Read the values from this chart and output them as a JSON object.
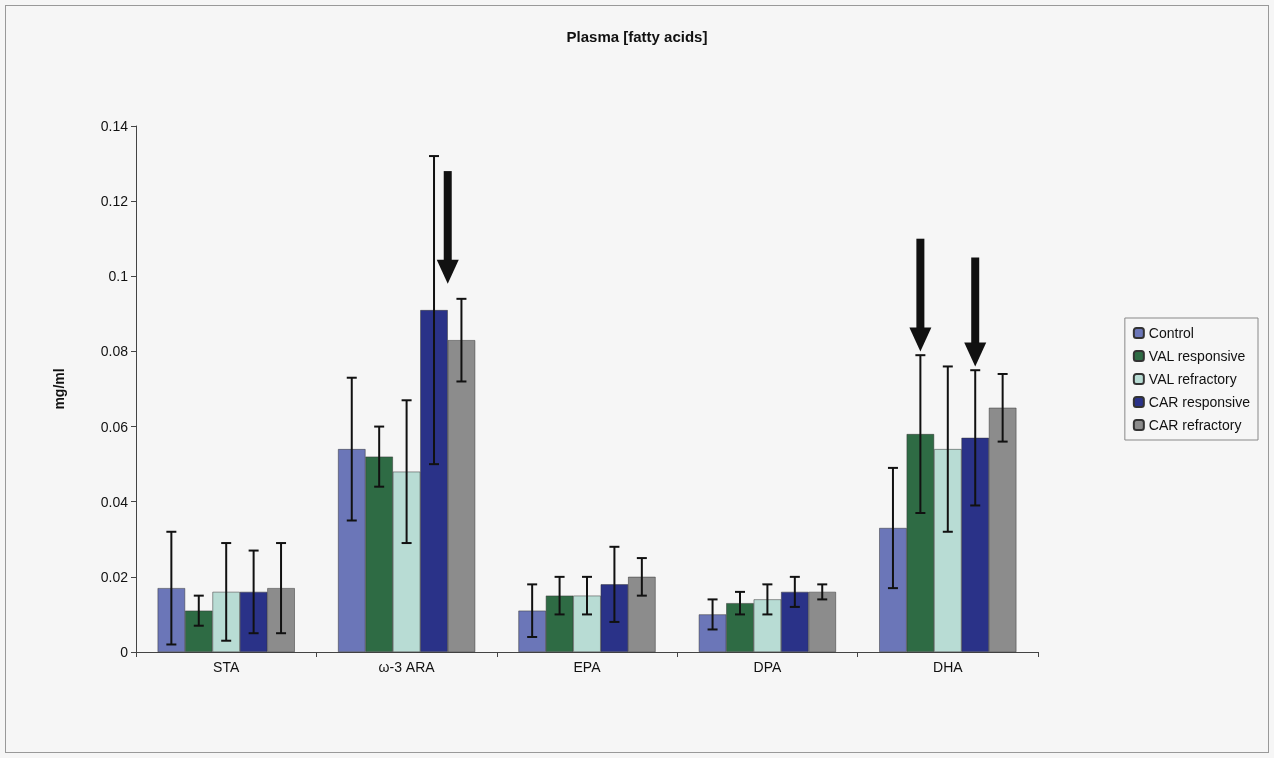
{
  "chart_data": {
    "type": "bar",
    "title": "Plasma [fatty acids]",
    "ylabel": "mg/ml",
    "categories": [
      "STA",
      "ω-3 ARA",
      "EPA",
      "DPA",
      "DHA"
    ],
    "series": [
      {
        "name": "Control",
        "color": "#6b76b8",
        "values": [
          0.017,
          0.054,
          0.011,
          0.01,
          0.033
        ],
        "errors": [
          0.015,
          0.019,
          0.007,
          0.004,
          0.016
        ]
      },
      {
        "name": "VAL responsive",
        "color": "#2e6b44",
        "values": [
          0.011,
          0.052,
          0.015,
          0.013,
          0.058
        ],
        "errors": [
          0.004,
          0.008,
          0.005,
          0.003,
          0.021
        ]
      },
      {
        "name": "VAL refractory",
        "color": "#b8dcd4",
        "values": [
          0.016,
          0.048,
          0.015,
          0.014,
          0.054
        ],
        "errors": [
          0.013,
          0.019,
          0.005,
          0.004,
          0.022
        ]
      },
      {
        "name": "CAR responsive",
        "color": "#2a3288",
        "values": [
          0.016,
          0.091,
          0.018,
          0.016,
          0.057
        ],
        "errors": [
          0.011,
          0.041,
          0.01,
          0.004,
          0.018
        ]
      },
      {
        "name": "CAR refractory",
        "color": "#8c8c8c",
        "values": [
          0.017,
          0.083,
          0.02,
          0.016,
          0.065
        ],
        "errors": [
          0.012,
          0.011,
          0.005,
          0.002,
          0.009
        ]
      }
    ],
    "ylim": [
      0,
      0.14
    ],
    "yticks": [
      0,
      0.02,
      0.04,
      0.06,
      0.08,
      0.1,
      0.12,
      0.14
    ],
    "grid": false,
    "legend": "right"
  }
}
